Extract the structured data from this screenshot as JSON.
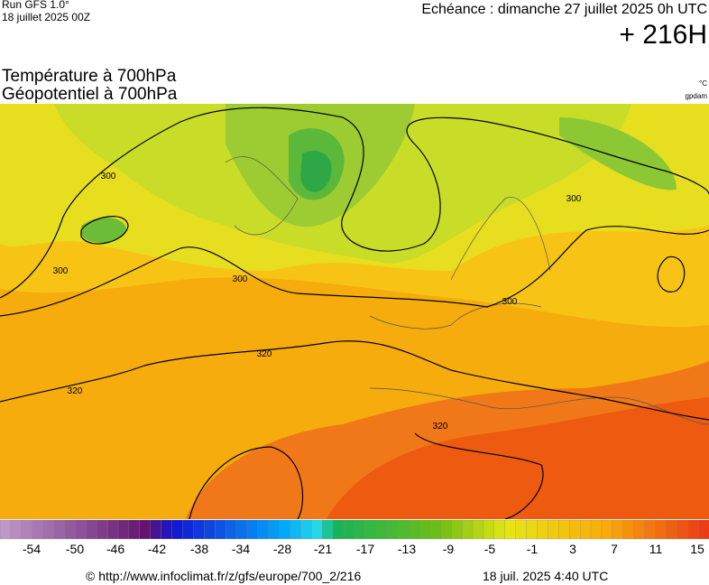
{
  "header": {
    "run": "Run GFS 1.0°",
    "run_date": "18 juillet 2025 00Z",
    "valid": "Echéance : dimanche 27 juillet 2025 0h UTC",
    "lead": "+ 216H"
  },
  "titles": {
    "line1": "Température à 700hPa",
    "line2": "Géopotentiel à 700hPa",
    "unit1": "°C",
    "unit2": "gpdam"
  },
  "map": {
    "contour_labels": [
      "300",
      "300",
      "300",
      "300",
      "300",
      "320",
      "320",
      "320"
    ]
  },
  "colorbar": {
    "labels": [
      -54,
      -50,
      -46,
      -42,
      -38,
      -34,
      -28,
      -21,
      -17,
      -13,
      -9,
      -5,
      -1,
      3,
      7,
      11,
      15
    ]
  },
  "footer": {
    "source": "© http://www.infoclimat.fr/z/gfs/europe/700_2/216",
    "generated": "18 juil. 2025  4:40 UTC"
  }
}
